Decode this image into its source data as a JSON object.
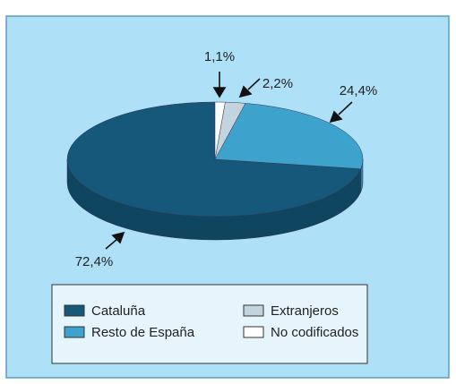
{
  "chart_data": {
    "type": "pie",
    "categories": [
      "Cataluña",
      "Resto de España",
      "Extranjeros",
      "No codificados"
    ],
    "values": [
      72.4,
      24.4,
      2.2,
      1.1
    ],
    "value_labels": [
      "72,4%",
      "24,4%",
      "2,2%",
      "1,1%"
    ],
    "colors": [
      "#15587a",
      "#3ea3cc",
      "#c3d4df",
      "#ffffff"
    ],
    "legend": "bottom"
  }
}
